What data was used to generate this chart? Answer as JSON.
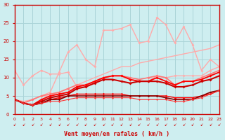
{
  "xlabel": "Vent moyen/en rafales ( km/h )",
  "xlim": [
    0,
    23
  ],
  "ylim": [
    0,
    30
  ],
  "yticks": [
    0,
    5,
    10,
    15,
    20,
    25,
    30
  ],
  "xticks": [
    0,
    1,
    2,
    3,
    4,
    5,
    6,
    7,
    8,
    9,
    10,
    11,
    12,
    13,
    14,
    15,
    16,
    17,
    18,
    19,
    20,
    21,
    22,
    23
  ],
  "bg_color": "#ceeef0",
  "grid_color": "#aad4d8",
  "series": [
    {
      "x": [
        0,
        1,
        2,
        3,
        4,
        5,
        6,
        7,
        8,
        9,
        10,
        11,
        12,
        13,
        14,
        15,
        16,
        17,
        18,
        19,
        20,
        21,
        22,
        23
      ],
      "y": [
        4,
        3.5,
        4,
        5,
        5,
        6,
        7,
        8,
        9,
        10,
        11,
        12,
        13,
        13,
        14,
        14.5,
        15,
        15.5,
        16,
        16.5,
        17,
        17.5,
        18,
        19
      ],
      "color": "#ffaaaa",
      "lw": 1.0,
      "marker": null,
      "ms": 0
    },
    {
      "x": [
        0,
        1,
        2,
        3,
        4,
        5,
        6,
        7,
        8,
        9,
        10,
        11,
        12,
        13,
        14,
        15,
        16,
        17,
        18,
        19,
        20,
        21,
        22,
        23
      ],
      "y": [
        12,
        8,
        10.5,
        12,
        11,
        11,
        11.5,
        7.5,
        7.5,
        9,
        10,
        10.5,
        10.5,
        9.5,
        9,
        9,
        10.5,
        10,
        10.5,
        10.5,
        10.5,
        10.5,
        12,
        13
      ],
      "color": "#ffaaaa",
      "lw": 1.0,
      "marker": "D",
      "ms": 2.0
    },
    {
      "x": [
        0,
        1,
        2,
        3,
        4,
        5,
        6,
        7,
        8,
        9,
        10,
        11,
        12,
        13,
        14,
        15,
        16,
        17,
        18,
        19,
        20,
        21,
        22,
        23
      ],
      "y": [
        4,
        3,
        4,
        5,
        6,
        11.5,
        17,
        19,
        15,
        13,
        23,
        23,
        23.5,
        24.5,
        19.5,
        20,
        26.5,
        24.5,
        19.5,
        24,
        19,
        12,
        15,
        13
      ],
      "color": "#ffaaaa",
      "lw": 1.0,
      "marker": "D",
      "ms": 2.0
    },
    {
      "x": [
        0,
        1,
        2,
        3,
        4,
        5,
        6,
        7,
        8,
        9,
        10,
        11,
        12,
        13,
        14,
        15,
        16,
        17,
        18,
        19,
        20,
        21,
        22,
        23
      ],
      "y": [
        4,
        3,
        4,
        5,
        5.5,
        6,
        7,
        8,
        8,
        9,
        10,
        10.5,
        10.5,
        10,
        9.5,
        10,
        10.5,
        10,
        8,
        9,
        9,
        10,
        11,
        12
      ],
      "color": "#ff7777",
      "lw": 1.2,
      "marker": "D",
      "ms": 2.0
    },
    {
      "x": [
        0,
        1,
        2,
        3,
        4,
        5,
        6,
        7,
        8,
        9,
        10,
        11,
        12,
        13,
        14,
        15,
        16,
        17,
        18,
        19,
        20,
        21,
        22,
        23
      ],
      "y": [
        4,
        3,
        2.5,
        4,
        5,
        5.5,
        6,
        7.5,
        8,
        9,
        10,
        10.5,
        10.5,
        9.5,
        9,
        9,
        10,
        9,
        8,
        9,
        9,
        9.5,
        10.5,
        11.5
      ],
      "color": "#ff0000",
      "lw": 1.3,
      "marker": "D",
      "ms": 2.0
    },
    {
      "x": [
        0,
        1,
        2,
        3,
        4,
        5,
        6,
        7,
        8,
        9,
        10,
        11,
        12,
        13,
        14,
        15,
        16,
        17,
        18,
        19,
        20,
        21,
        22,
        23
      ],
      "y": [
        4,
        3,
        2.5,
        3.5,
        4.5,
        5,
        5.5,
        7,
        7.5,
        8.5,
        9.5,
        9.5,
        9,
        8.5,
        9,
        9,
        9,
        8.5,
        7.5,
        7.5,
        8,
        9,
        9.5,
        10.5
      ],
      "color": "#cc0000",
      "lw": 1.5,
      "marker": "D",
      "ms": 2.0
    },
    {
      "x": [
        0,
        1,
        2,
        3,
        4,
        5,
        6,
        7,
        8,
        9,
        10,
        11,
        12,
        13,
        14,
        15,
        16,
        17,
        18,
        19,
        20,
        21,
        22,
        23
      ],
      "y": [
        4,
        3,
        2.5,
        3,
        4,
        4.5,
        5,
        5.5,
        5.5,
        5.5,
        5.5,
        5.5,
        5.5,
        5,
        5,
        5,
        5,
        5,
        4.5,
        4.5,
        4.5,
        5,
        5.5,
        6.5
      ],
      "color": "#ff0000",
      "lw": 1.0,
      "marker": "D",
      "ms": 1.8
    },
    {
      "x": [
        0,
        1,
        2,
        3,
        4,
        5,
        6,
        7,
        8,
        9,
        10,
        11,
        12,
        13,
        14,
        15,
        16,
        17,
        18,
        19,
        20,
        21,
        22,
        23
      ],
      "y": [
        4,
        3,
        2.5,
        3,
        4,
        4,
        5,
        5,
        5,
        5,
        5,
        5,
        5,
        5,
        5,
        5,
        5,
        4.5,
        4,
        4,
        4,
        5,
        6,
        6.5
      ],
      "color": "#880000",
      "lw": 1.2,
      "marker": "D",
      "ms": 1.8
    },
    {
      "x": [
        0,
        1,
        2,
        3,
        4,
        5,
        6,
        7,
        8,
        9,
        10,
        11,
        12,
        13,
        14,
        15,
        16,
        17,
        18,
        19,
        20,
        21,
        22,
        23
      ],
      "y": [
        4,
        3,
        2.5,
        3,
        3.5,
        3.5,
        4,
        4.5,
        4.5,
        4.5,
        4.5,
        4.5,
        4.5,
        4.5,
        4,
        4,
        4,
        4,
        3.5,
        3.5,
        4,
        4.5,
        5.5,
        6.5
      ],
      "color": "#ff3333",
      "lw": 0.8,
      "marker": "D",
      "ms": 1.5
    }
  ],
  "arrow_color": "#cc0000",
  "xlabel_color": "#cc0000",
  "tick_color": "#cc0000",
  "axis_color": "#cc0000"
}
